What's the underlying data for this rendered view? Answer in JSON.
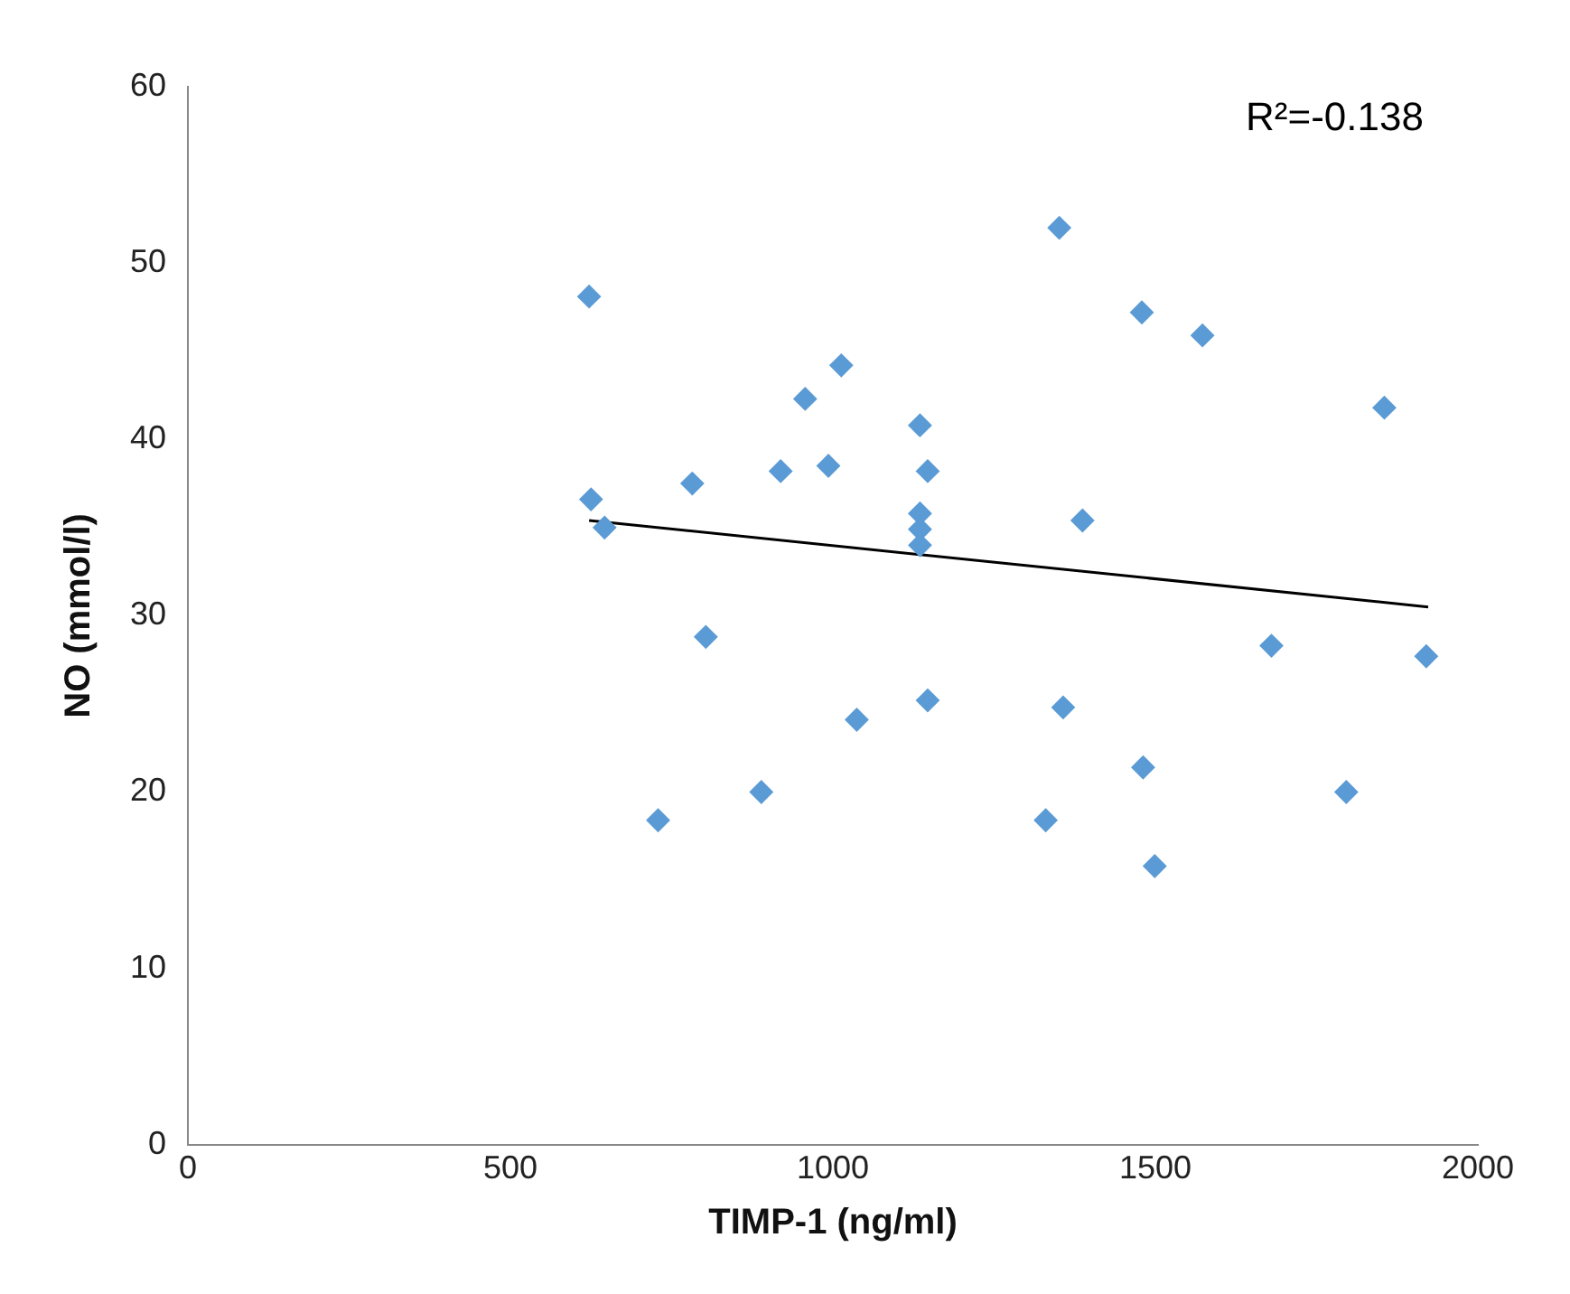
{
  "chart_data": {
    "type": "scatter",
    "xlabel": "TIMP-1 (ng/ml)",
    "ylabel": "NO (mmol/l)",
    "annotations": [
      "R²=-0.138"
    ],
    "xlim": [
      0,
      2000
    ],
    "xticks": [
      0,
      500,
      1000,
      1500,
      2000
    ],
    "ylim": [
      0,
      60
    ],
    "yticks": [
      0,
      10,
      20,
      30,
      40,
      50,
      60
    ],
    "grid": false,
    "legend": false,
    "series": [
      {
        "type": "scatter",
        "marker": "diamond",
        "color": "#5b9bd5",
        "x": [
          622,
          625,
          646,
          729,
          782,
          803,
          889,
          919,
          957,
          993,
          1013,
          1037,
          1135,
          1135,
          1135,
          1135,
          1147,
          1147,
          1330,
          1351,
          1357,
          1387,
          1479,
          1481,
          1499,
          1573,
          1680,
          1796,
          1855,
          1920
        ],
        "values": [
          48.1,
          36.6,
          35.0,
          18.4,
          37.5,
          28.8,
          20.0,
          38.2,
          42.3,
          38.5,
          44.2,
          24.1,
          40.8,
          35.8,
          34.9,
          34.0,
          38.2,
          25.2,
          18.4,
          52.0,
          24.8,
          35.4,
          47.2,
          21.4,
          15.8,
          45.9,
          28.3,
          20.0,
          41.8,
          27.7
        ]
      },
      {
        "type": "line",
        "marker": "none",
        "color": "#000000",
        "x": [
          622,
          1923
        ],
        "values": [
          35.4,
          30.5
        ]
      }
    ]
  }
}
